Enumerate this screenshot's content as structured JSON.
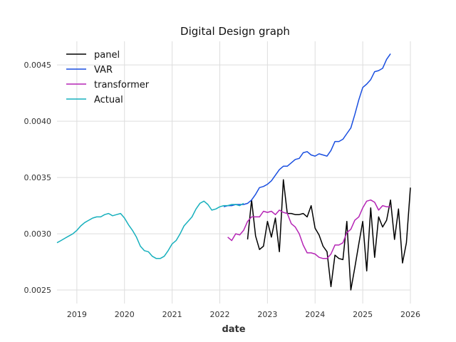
{
  "chart_data": {
    "type": "line",
    "title": "Digital Design graph",
    "xlabel": "date",
    "ylabel": "",
    "x_axis_type": "date",
    "xlim": [
      "2018-08-01",
      "2026-01-01"
    ],
    "ylim": [
      0.00238,
      0.00471
    ],
    "x_ticks": [
      "2019",
      "2020",
      "2021",
      "2022",
      "2023",
      "2024",
      "2025",
      "2026"
    ],
    "y_ticks": [
      "0.0025",
      "0.0030",
      "0.0035",
      "0.0040",
      "0.0045"
    ],
    "grid": true,
    "legend_position": "top-left",
    "series": [
      {
        "name": "panel",
        "color": "#000000",
        "x": [
          "2022-08",
          "2022-09",
          "2022-10",
          "2022-11",
          "2022-12",
          "2023-01",
          "2023-02",
          "2023-03",
          "2023-04",
          "2023-05",
          "2023-06",
          "2023-07",
          "2023-08",
          "2023-09",
          "2023-10",
          "2023-11",
          "2023-12",
          "2024-01",
          "2024-02",
          "2024-03",
          "2024-04",
          "2024-05",
          "2024-06",
          "2024-07",
          "2024-08",
          "2024-09",
          "2024-10",
          "2024-11",
          "2024-12",
          "2025-01",
          "2025-02",
          "2025-03",
          "2025-04",
          "2025-05",
          "2025-06",
          "2025-07",
          "2025-08",
          "2025-09",
          "2025-10",
          "2025-11",
          "2025-12",
          "2026-01"
        ],
        "values": [
          0.00295,
          0.0033,
          0.00298,
          0.00286,
          0.00289,
          0.00311,
          0.00297,
          0.00314,
          0.00284,
          0.00348,
          0.00318,
          0.00318,
          0.00317,
          0.00317,
          0.00318,
          0.00315,
          0.00325,
          0.00305,
          0.00299,
          0.00289,
          0.00284,
          0.00253,
          0.00281,
          0.00278,
          0.00277,
          0.00311,
          0.0025,
          0.0027,
          0.00291,
          0.00311,
          0.00267,
          0.00323,
          0.00279,
          0.00315,
          0.00306,
          0.00312,
          0.0033,
          0.00295,
          0.00322,
          0.00274,
          0.00292,
          0.00341
        ]
      },
      {
        "name": "VAR",
        "color": "#1a4fe0",
        "x": [
          "2022-02",
          "2022-03",
          "2022-04",
          "2022-05",
          "2022-06",
          "2022-07",
          "2022-08",
          "2022-09",
          "2022-10",
          "2022-11",
          "2022-12",
          "2023-01",
          "2023-02",
          "2023-03",
          "2023-04",
          "2023-05",
          "2023-06",
          "2023-07",
          "2023-08",
          "2023-09",
          "2023-10",
          "2023-11",
          "2023-12",
          "2024-01",
          "2024-02",
          "2024-03",
          "2024-04",
          "2024-05",
          "2024-06",
          "2024-07",
          "2024-08",
          "2024-09",
          "2024-10",
          "2024-11",
          "2024-12",
          "2025-01",
          "2025-02",
          "2025-03",
          "2025-04",
          "2025-05",
          "2025-06",
          "2025-07",
          "2025-08"
        ],
        "values": [
          0.00324,
          0.00325,
          0.00325,
          0.00326,
          0.00326,
          0.00326,
          0.00327,
          0.0033,
          0.00335,
          0.00341,
          0.00342,
          0.00344,
          0.00347,
          0.00352,
          0.00357,
          0.0036,
          0.0036,
          0.00363,
          0.00366,
          0.00367,
          0.00372,
          0.00373,
          0.0037,
          0.00369,
          0.00371,
          0.0037,
          0.00369,
          0.00374,
          0.00382,
          0.00382,
          0.00384,
          0.00389,
          0.00394,
          0.00406,
          0.00419,
          0.0043,
          0.00433,
          0.00437,
          0.00444,
          0.00445,
          0.00447,
          0.00455,
          0.0046
        ]
      },
      {
        "name": "transformer",
        "color": "#b525b5",
        "x": [
          "2022-03",
          "2022-04",
          "2022-05",
          "2022-06",
          "2022-07",
          "2022-08",
          "2022-09",
          "2022-10",
          "2022-11",
          "2022-12",
          "2023-01",
          "2023-02",
          "2023-03",
          "2023-04",
          "2023-05",
          "2023-06",
          "2023-07",
          "2023-08",
          "2023-09",
          "2023-10",
          "2023-11",
          "2023-12",
          "2024-01",
          "2024-02",
          "2024-03",
          "2024-04",
          "2024-05",
          "2024-06",
          "2024-07",
          "2024-08",
          "2024-09",
          "2024-10",
          "2024-11",
          "2024-12",
          "2025-01",
          "2025-02",
          "2025-03",
          "2025-04",
          "2025-05",
          "2025-06",
          "2025-07",
          "2025-08"
        ],
        "values": [
          0.00297,
          0.00294,
          0.003,
          0.00299,
          0.00303,
          0.00311,
          0.00315,
          0.00315,
          0.00315,
          0.0032,
          0.00319,
          0.0032,
          0.00317,
          0.00321,
          0.00319,
          0.00318,
          0.00309,
          0.00306,
          0.003,
          0.0029,
          0.00283,
          0.00283,
          0.00282,
          0.00279,
          0.00278,
          0.00278,
          0.00282,
          0.0029,
          0.0029,
          0.00292,
          0.00301,
          0.00304,
          0.00312,
          0.00315,
          0.00323,
          0.00329,
          0.0033,
          0.00328,
          0.00321,
          0.00325,
          0.00324,
          0.00324
        ]
      },
      {
        "name": "Actual",
        "color": "#17b0bd",
        "x": [
          "2018-08",
          "2018-09",
          "2018-10",
          "2018-11",
          "2018-12",
          "2019-01",
          "2019-02",
          "2019-03",
          "2019-04",
          "2019-05",
          "2019-06",
          "2019-07",
          "2019-08",
          "2019-09",
          "2019-10",
          "2019-11",
          "2019-12",
          "2020-01",
          "2020-02",
          "2020-03",
          "2020-04",
          "2020-05",
          "2020-06",
          "2020-07",
          "2020-08",
          "2020-09",
          "2020-10",
          "2020-11",
          "2020-12",
          "2021-01",
          "2021-02",
          "2021-03",
          "2021-04",
          "2021-05",
          "2021-06",
          "2021-07",
          "2021-08",
          "2021-09",
          "2021-10",
          "2021-11",
          "2021-12",
          "2022-01",
          "2022-02",
          "2022-03",
          "2022-04",
          "2022-05",
          "2022-06",
          "2022-07"
        ],
        "values": [
          0.00292,
          0.00294,
          0.00296,
          0.00298,
          0.003,
          0.00303,
          0.00307,
          0.0031,
          0.00312,
          0.00314,
          0.00315,
          0.00315,
          0.00317,
          0.00318,
          0.00316,
          0.00317,
          0.00318,
          0.00314,
          0.00308,
          0.00303,
          0.00297,
          0.00289,
          0.00285,
          0.00284,
          0.0028,
          0.00278,
          0.00278,
          0.0028,
          0.00285,
          0.00291,
          0.00294,
          0.003,
          0.00307,
          0.00311,
          0.00315,
          0.00322,
          0.00327,
          0.00329,
          0.00326,
          0.00321,
          0.00322,
          0.00324,
          0.00325,
          0.00325,
          0.00326,
          0.00326,
          0.00325,
          0.00327
        ]
      }
    ]
  }
}
